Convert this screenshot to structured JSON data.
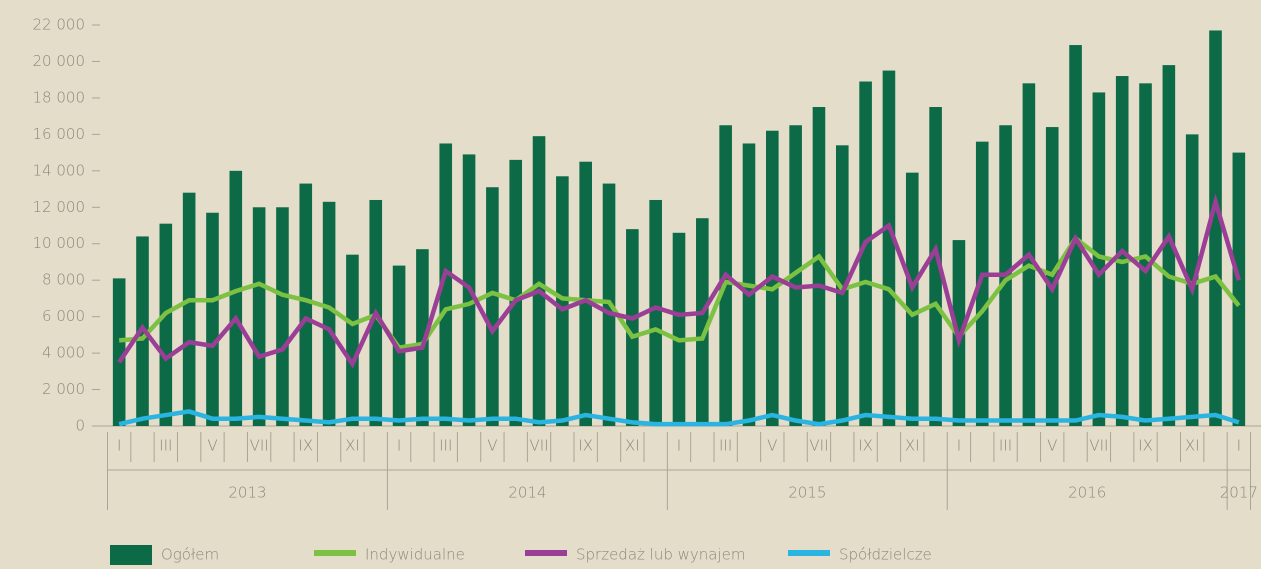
{
  "chart_data": {
    "type": "bar-line",
    "categories": [
      "I",
      null,
      "III",
      null,
      "V",
      null,
      "VII",
      null,
      "IX",
      null,
      "XI",
      null,
      "I",
      null,
      "III",
      null,
      "V",
      null,
      "VII",
      null,
      "IX",
      null,
      "XI",
      null,
      "I",
      null,
      "III",
      null,
      "V",
      null,
      "VII",
      null,
      "IX",
      null,
      "XI",
      null,
      "I",
      null,
      "III",
      null,
      "V",
      null,
      "VII",
      null,
      "IX",
      null,
      "XI",
      null,
      "I"
    ],
    "years": [
      "2013",
      "2014",
      "2015",
      "2016",
      "2017"
    ],
    "ylim": [
      0,
      22000
    ],
    "yticks": [
      0,
      {
        "value": 2000,
        "label": "2 000"
      },
      {
        "value": 4000,
        "label": "4 000"
      },
      {
        "value": 6000,
        "label": "6 000"
      },
      {
        "value": 8000,
        "label": "8 000"
      },
      {
        "value": 10000,
        "label": "10 000"
      },
      {
        "value": 12000,
        "label": "12 000"
      },
      {
        "value": 14000,
        "label": "14 000"
      },
      {
        "value": 16000,
        "label": "16 000"
      },
      {
        "value": 18000,
        "label": "18 000"
      },
      {
        "value": 20000,
        "label": "20 000"
      },
      {
        "value": 22000,
        "label": "22 000"
      }
    ],
    "grid": false,
    "legend": "bottom",
    "series": [
      {
        "name": "Ogółem",
        "type": "bar",
        "color": "#0d6a47",
        "values": [
          8100,
          10400,
          11100,
          12800,
          11700,
          14000,
          12000,
          12000,
          13300,
          12300,
          9400,
          12400,
          8800,
          9700,
          15500,
          14900,
          13100,
          14600,
          15900,
          13700,
          14500,
          13300,
          10800,
          12400,
          10600,
          11400,
          16500,
          15500,
          16200,
          16500,
          17500,
          15400,
          18900,
          19500,
          13900,
          17500,
          10200,
          15600,
          16500,
          18800,
          16400,
          20900,
          18300,
          19200,
          18800,
          19800,
          16000,
          21700,
          15000
        ]
      },
      {
        "name": "Indywidualne",
        "type": "line",
        "color": "#7cc142",
        "values": [
          4700,
          4800,
          6200,
          6900,
          6900,
          7400,
          7800,
          7200,
          6900,
          6500,
          5600,
          6100,
          4300,
          4500,
          6400,
          6700,
          7300,
          6900,
          7800,
          7000,
          6900,
          6800,
          4900,
          5300,
          4700,
          4800,
          7900,
          7700,
          7500,
          8400,
          9300,
          7500,
          7900,
          7500,
          6100,
          6700,
          4900,
          6300,
          8000,
          8800,
          8300,
          10300,
          9300,
          9000,
          9300,
          8200,
          7800,
          8200,
          6600
        ]
      },
      {
        "name": "Sprzedaż lub wynajem",
        "type": "line",
        "color": "#9b3e96",
        "values": [
          3500,
          5400,
          3700,
          4600,
          4400,
          5900,
          3800,
          4200,
          5900,
          5300,
          3400,
          6200,
          4100,
          4300,
          8500,
          7600,
          5200,
          6900,
          7400,
          6400,
          6900,
          6200,
          5900,
          6500,
          6100,
          6200,
          8300,
          7200,
          8200,
          7600,
          7700,
          7300,
          10100,
          11000,
          7600,
          9700,
          4700,
          8300,
          8300,
          9400,
          7500,
          10300,
          8300,
          9600,
          8500,
          10400,
          7500,
          12300,
          8000
        ]
      },
      {
        "name": "Spółdzielcze",
        "type": "line",
        "color": "#2ab4e2",
        "values": [
          100,
          400,
          600,
          800,
          400,
          400,
          500,
          400,
          300,
          200,
          400,
          400,
          300,
          400,
          400,
          300,
          400,
          400,
          200,
          300,
          600,
          400,
          200,
          100,
          100,
          100,
          100,
          300,
          600,
          300,
          100,
          300,
          600,
          500,
          400,
          400,
          300,
          300,
          300,
          300,
          300,
          300,
          600,
          500,
          300,
          400,
          500,
          600,
          200
        ]
      }
    ]
  }
}
